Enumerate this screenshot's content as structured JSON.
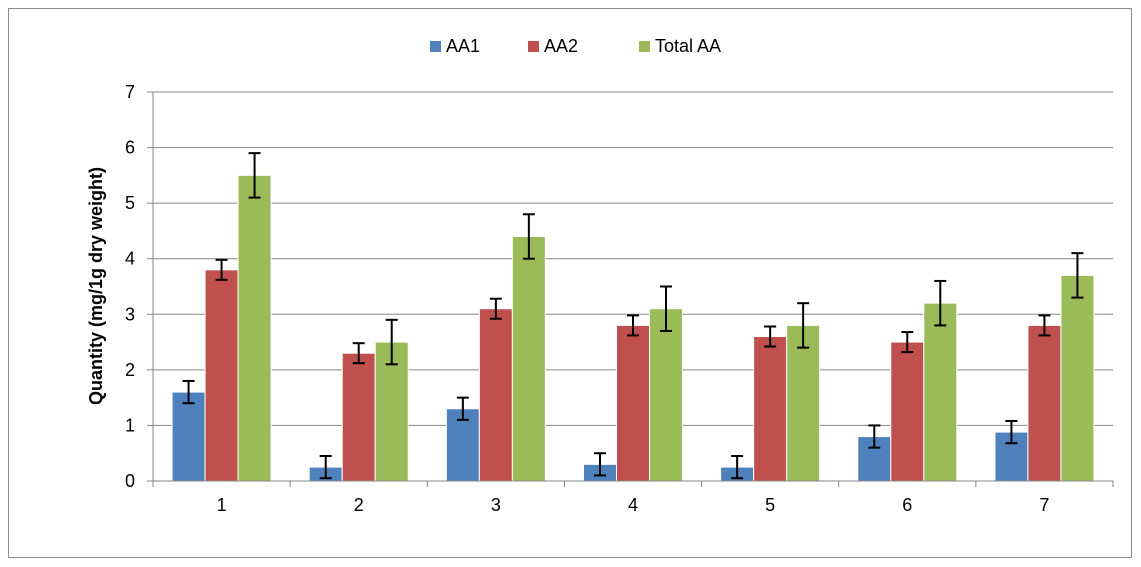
{
  "chart_data": {
    "type": "bar",
    "title": "",
    "xlabel": "",
    "ylabel": "Quantity (mg/1g dry weight)",
    "ylim": [
      0,
      7
    ],
    "y_ticks": [
      0,
      1,
      2,
      3,
      4,
      5,
      6,
      7
    ],
    "grid": "horizontal",
    "legend_position": "top",
    "categories": [
      "1",
      "2",
      "3",
      "4",
      "5",
      "6",
      "7"
    ],
    "series": [
      {
        "name": "AA1",
        "color": "#4f81bd",
        "values": [
          1.6,
          0.25,
          1.3,
          0.3,
          0.25,
          0.8,
          0.88
        ],
        "errors": [
          0.2,
          0.2,
          0.2,
          0.2,
          0.2,
          0.2,
          0.2
        ]
      },
      {
        "name": "AA2",
        "color": "#c0504d",
        "values": [
          3.8,
          2.3,
          3.1,
          2.8,
          2.6,
          2.5,
          2.8
        ],
        "errors": [
          0.18,
          0.18,
          0.18,
          0.18,
          0.18,
          0.18,
          0.18
        ]
      },
      {
        "name": "Total AA",
        "color": "#9bbb59",
        "values": [
          5.5,
          2.5,
          4.4,
          3.1,
          2.8,
          3.2,
          3.7
        ],
        "errors": [
          0.4,
          0.4,
          0.4,
          0.4,
          0.4,
          0.4,
          0.4
        ]
      }
    ]
  }
}
